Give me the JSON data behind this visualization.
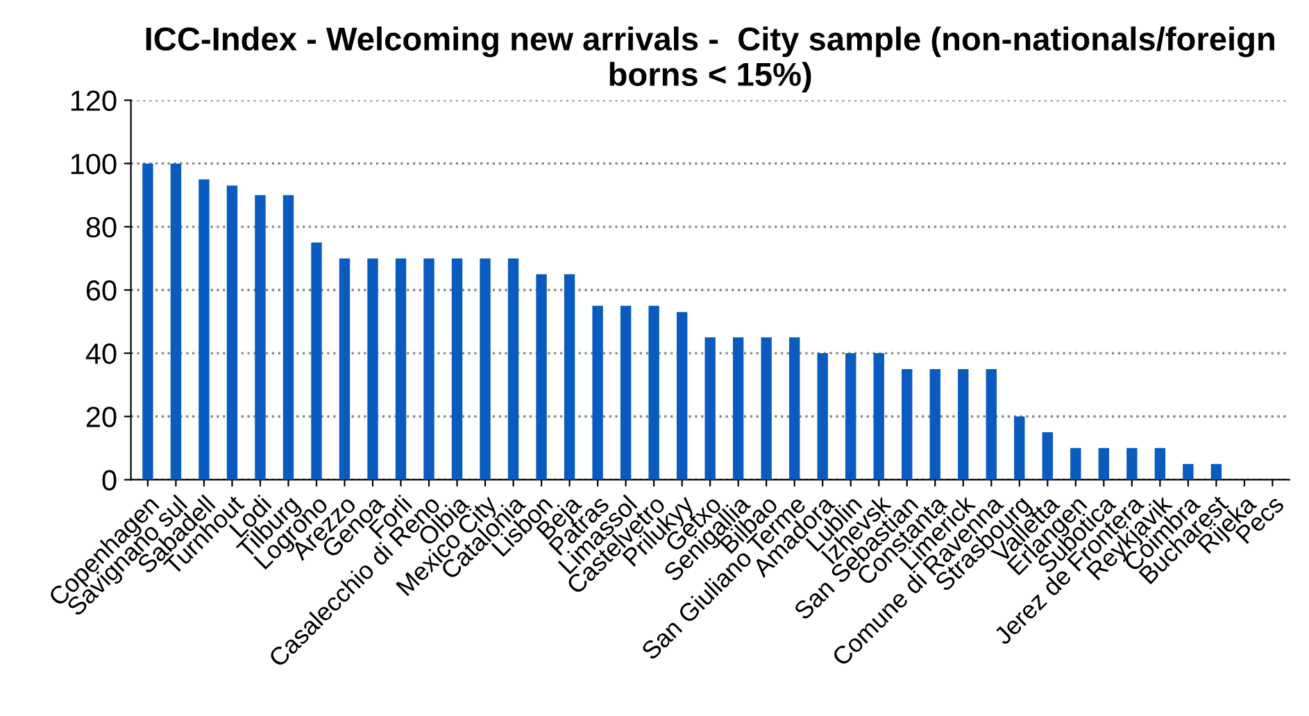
{
  "chart_data": {
    "type": "bar",
    "title": "ICC-Index - Welcoming new arrivals -  City sample (non-nationals/foreign borns < 15%)",
    "categories": [
      "Copenhagen",
      "Savignano sul",
      "Sabadell",
      "Turnhout",
      "Lodi",
      "Tilburg",
      "Logrono",
      "Arezzo",
      "Genoa",
      "Forli",
      "Casalecchio di Reno",
      "Olbia",
      "Mexico City",
      "Catalonia",
      "Lisbon",
      "Beja",
      "Patras",
      "Limassol",
      "Castelvetro",
      "Prilukyy",
      "Getxo",
      "Senigallia",
      "Bilbao",
      "San Giuliano Terme",
      "Amadora",
      "Lublin",
      "Izhevsk",
      "San Sebastian",
      "Constanta",
      "Limerick",
      "Comune di Ravenna",
      "Strasbourg",
      "Valletta",
      "Erlangen",
      "Subotica",
      "Jerez de Frontera",
      "Reykjavik",
      "Coimbra",
      "Bucharest",
      "Rijeka",
      "Pecs"
    ],
    "values": [
      100,
      100,
      95,
      93,
      90,
      90,
      75,
      70,
      70,
      70,
      70,
      70,
      70,
      70,
      65,
      65,
      55,
      55,
      55,
      53,
      45,
      45,
      45,
      45,
      40,
      40,
      40,
      35,
      35,
      35,
      35,
      20,
      15,
      10,
      10,
      10,
      10,
      5,
      5,
      0,
      0
    ],
    "color": "#0a5bbf",
    "ylim": [
      0,
      120
    ],
    "yticks": [
      0,
      20,
      40,
      60,
      80,
      100,
      120
    ],
    "grid": "y"
  }
}
